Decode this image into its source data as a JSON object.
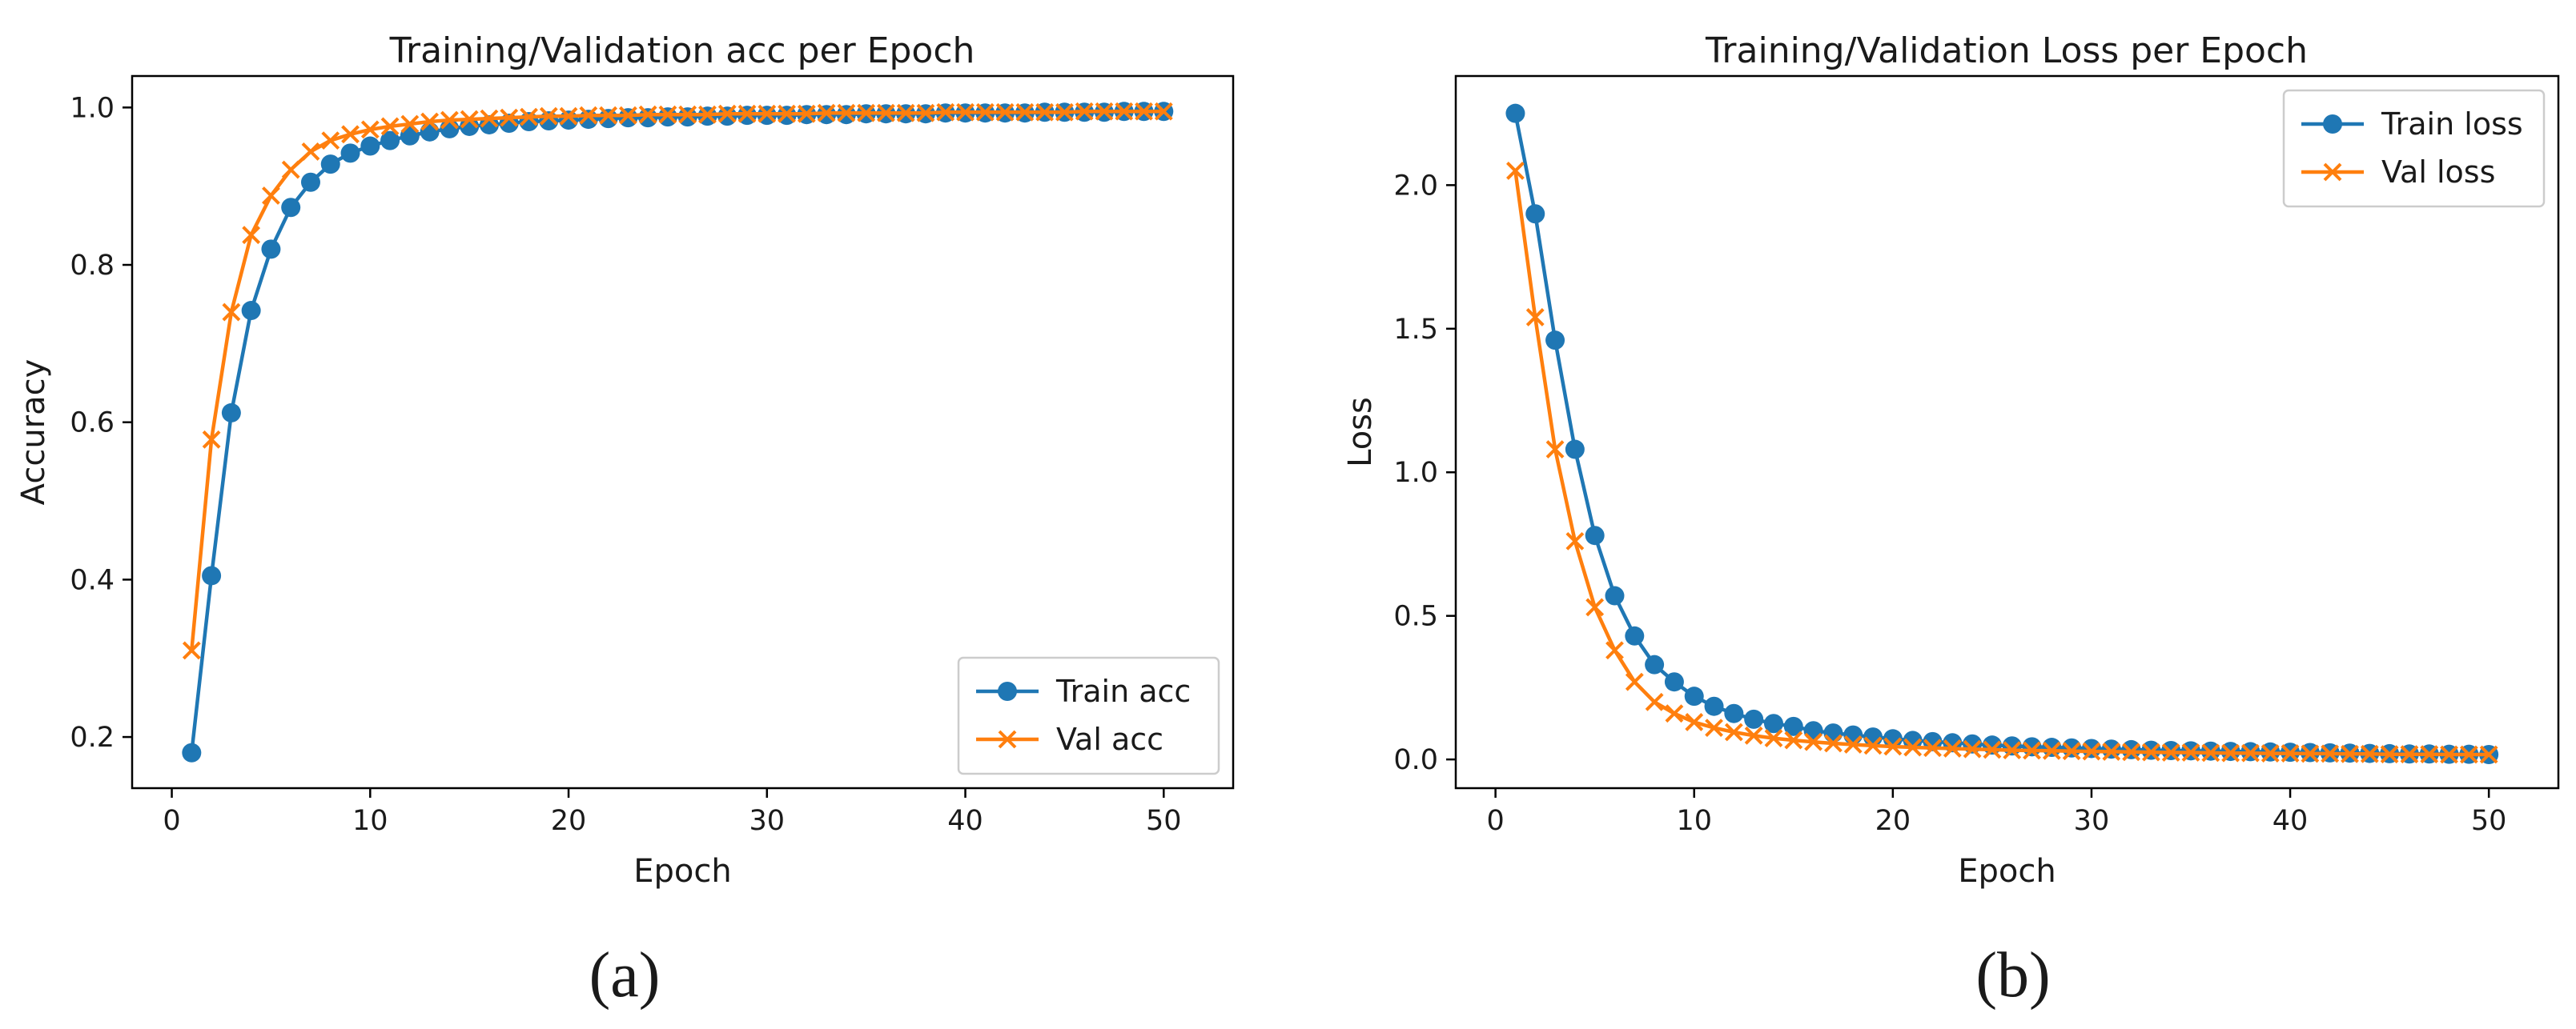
{
  "colors": {
    "train": "#1f77b4",
    "val": "#ff7f0e"
  },
  "chart_data": [
    {
      "type": "line",
      "title": "Training/Validation acc per Epoch",
      "xlabel": "Epoch",
      "ylabel": "Accuracy",
      "caption": "(a)",
      "xlim": [
        -2,
        53.5
      ],
      "ylim": [
        0.135,
        1.04
      ],
      "xticks": [
        0,
        10,
        20,
        30,
        40,
        50
      ],
      "yticks": [
        0.2,
        0.4,
        0.6,
        0.8,
        1.0
      ],
      "ytick_labels": [
        "0.2",
        "0.4",
        "0.6",
        "0.8",
        "1.0"
      ],
      "legend_position": "lower-right",
      "x": [
        1,
        2,
        3,
        4,
        5,
        6,
        7,
        8,
        9,
        10,
        11,
        12,
        13,
        14,
        15,
        16,
        17,
        18,
        19,
        20,
        21,
        22,
        23,
        24,
        25,
        26,
        27,
        28,
        29,
        30,
        31,
        32,
        33,
        34,
        35,
        36,
        37,
        38,
        39,
        40,
        41,
        42,
        43,
        44,
        45,
        46,
        47,
        48,
        49,
        50
      ],
      "series": [
        {
          "name": "Train acc",
          "marker": "circle",
          "values": [
            0.18,
            0.405,
            0.612,
            0.742,
            0.82,
            0.873,
            0.905,
            0.928,
            0.942,
            0.951,
            0.958,
            0.964,
            0.969,
            0.973,
            0.976,
            0.978,
            0.98,
            0.982,
            0.983,
            0.984,
            0.985,
            0.986,
            0.987,
            0.987,
            0.988,
            0.988,
            0.989,
            0.989,
            0.99,
            0.99,
            0.99,
            0.991,
            0.991,
            0.991,
            0.992,
            0.992,
            0.992,
            0.992,
            0.993,
            0.993,
            0.993,
            0.993,
            0.993,
            0.994,
            0.994,
            0.994,
            0.994,
            0.995,
            0.995,
            0.995
          ]
        },
        {
          "name": "Val acc",
          "marker": "x",
          "values": [
            0.31,
            0.578,
            0.74,
            0.838,
            0.888,
            0.921,
            0.944,
            0.958,
            0.966,
            0.972,
            0.976,
            0.979,
            0.982,
            0.984,
            0.985,
            0.986,
            0.987,
            0.988,
            0.989,
            0.989,
            0.99,
            0.99,
            0.99,
            0.991,
            0.991,
            0.991,
            0.991,
            0.992,
            0.992,
            0.992,
            0.992,
            0.992,
            0.993,
            0.993,
            0.993,
            0.993,
            0.993,
            0.993,
            0.994,
            0.994,
            0.994,
            0.994,
            0.994,
            0.994,
            0.994,
            0.995,
            0.995,
            0.995,
            0.995,
            0.995
          ]
        }
      ]
    },
    {
      "type": "line",
      "title": "Training/Validation Loss per Epoch",
      "xlabel": "Epoch",
      "ylabel": "Loss",
      "caption": "(b)",
      "xlim": [
        -2,
        53.5
      ],
      "ylim": [
        -0.1,
        2.38
      ],
      "xticks": [
        0,
        10,
        20,
        30,
        40,
        50
      ],
      "yticks": [
        0.0,
        0.5,
        1.0,
        1.5,
        2.0
      ],
      "ytick_labels": [
        "0.0",
        "0.5",
        "1.0",
        "1.5",
        "2.0"
      ],
      "legend_position": "top-right",
      "x": [
        1,
        2,
        3,
        4,
        5,
        6,
        7,
        8,
        9,
        10,
        11,
        12,
        13,
        14,
        15,
        16,
        17,
        18,
        19,
        20,
        21,
        22,
        23,
        24,
        25,
        26,
        27,
        28,
        29,
        30,
        31,
        32,
        33,
        34,
        35,
        36,
        37,
        38,
        39,
        40,
        41,
        42,
        43,
        44,
        45,
        46,
        47,
        48,
        49,
        50
      ],
      "series": [
        {
          "name": "Train loss",
          "marker": "circle",
          "values": [
            2.25,
            1.9,
            1.46,
            1.08,
            0.78,
            0.57,
            0.43,
            0.33,
            0.27,
            0.22,
            0.185,
            0.16,
            0.14,
            0.125,
            0.115,
            0.1,
            0.092,
            0.085,
            0.078,
            0.072,
            0.066,
            0.062,
            0.058,
            0.054,
            0.05,
            0.047,
            0.044,
            0.042,
            0.04,
            0.038,
            0.036,
            0.034,
            0.032,
            0.031,
            0.03,
            0.029,
            0.028,
            0.027,
            0.026,
            0.025,
            0.024,
            0.023,
            0.022,
            0.021,
            0.02,
            0.019,
            0.019,
            0.018,
            0.018,
            0.017
          ]
        },
        {
          "name": "Val loss",
          "marker": "x",
          "values": [
            2.05,
            1.54,
            1.08,
            0.76,
            0.53,
            0.38,
            0.27,
            0.2,
            0.16,
            0.13,
            0.11,
            0.095,
            0.083,
            0.074,
            0.067,
            0.061,
            0.056,
            0.052,
            0.048,
            0.045,
            0.042,
            0.04,
            0.038,
            0.036,
            0.034,
            0.032,
            0.031,
            0.03,
            0.029,
            0.028,
            0.027,
            0.026,
            0.025,
            0.024,
            0.024,
            0.023,
            0.022,
            0.022,
            0.021,
            0.021,
            0.02,
            0.02,
            0.019,
            0.019,
            0.018,
            0.018,
            0.018,
            0.017,
            0.017,
            0.017
          ]
        }
      ]
    }
  ]
}
